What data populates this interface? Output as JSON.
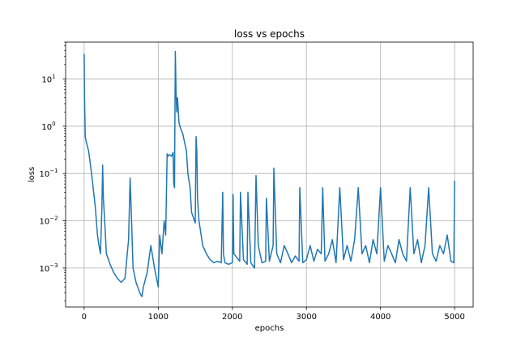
{
  "chart_data": {
    "type": "line",
    "title": "loss vs epochs",
    "xlabel": "epochs",
    "ylabel": "loss",
    "xlim": [
      -250,
      5250
    ],
    "ylim": [
      0.00015,
      60
    ],
    "yscale": "log",
    "grid": true,
    "line_color": "#1f77b4",
    "x_ticks": [
      {
        "value": 0,
        "label": "0"
      },
      {
        "value": 1000,
        "label": "1000"
      },
      {
        "value": 2000,
        "label": "2000"
      },
      {
        "value": 3000,
        "label": "3000"
      },
      {
        "value": 4000,
        "label": "4000"
      },
      {
        "value": 5000,
        "label": "5000"
      }
    ],
    "y_ticks": [
      {
        "value": 0.001,
        "base": "10",
        "exp": "−3"
      },
      {
        "value": 0.01,
        "base": "10",
        "exp": "−2"
      },
      {
        "value": 0.1,
        "base": "10",
        "exp": "−1"
      },
      {
        "value": 1,
        "base": "10",
        "exp": "0"
      },
      {
        "value": 10,
        "base": "10",
        "exp": "1"
      }
    ],
    "series": [
      {
        "x": [
          0,
          5,
          15,
          30,
          60,
          100,
          150,
          180,
          200,
          220,
          240,
          250,
          260,
          280,
          300,
          350,
          400,
          450,
          500,
          550,
          600,
          620,
          640,
          660,
          700,
          750,
          780,
          800,
          850,
          900,
          950,
          1000,
          1020,
          1050,
          1080,
          1100,
          1120,
          1130,
          1150,
          1180,
          1200,
          1210,
          1220,
          1230,
          1240,
          1250,
          1260,
          1280,
          1300,
          1330,
          1350,
          1380,
          1400,
          1430,
          1450,
          1500,
          1510,
          1520,
          1530,
          1550,
          1600,
          1650,
          1700,
          1750,
          1800,
          1850,
          1870,
          1880,
          1900,
          1950,
          2000,
          2010,
          2020,
          2100,
          2110,
          2150,
          2200,
          2210,
          2250,
          2300,
          2320,
          2350,
          2400,
          2450,
          2460,
          2500,
          2550,
          2560,
          2600,
          2650,
          2700,
          2750,
          2800,
          2850,
          2900,
          2910,
          2950,
          3000,
          3050,
          3100,
          3150,
          3200,
          3220,
          3250,
          3300,
          3350,
          3400,
          3450,
          3500,
          3550,
          3600,
          3650,
          3700,
          3750,
          3800,
          3850,
          3900,
          3950,
          4000,
          4050,
          4100,
          4150,
          4200,
          4250,
          4300,
          4350,
          4400,
          4450,
          4500,
          4550,
          4600,
          4650,
          4700,
          4750,
          4800,
          4850,
          4900,
          4950,
          4990,
          5000
        ],
        "y": [
          34,
          5,
          0.6,
          0.45,
          0.3,
          0.1,
          0.02,
          0.005,
          0.003,
          0.002,
          0.02,
          0.15,
          0.03,
          0.008,
          0.002,
          0.0012,
          0.0008,
          0.0006,
          0.0005,
          0.0006,
          0.004,
          0.08,
          0.01,
          0.001,
          0.0005,
          0.0003,
          0.00025,
          0.0004,
          0.0008,
          0.003,
          0.001,
          0.0004,
          0.005,
          0.002,
          0.01,
          0.005,
          0.26,
          0.23,
          0.25,
          0.23,
          0.28,
          0.06,
          0.05,
          38,
          5,
          2,
          4,
          1.2,
          0.9,
          0.7,
          0.5,
          0.3,
          0.1,
          0.05,
          0.015,
          0.009,
          0.6,
          0.3,
          0.03,
          0.01,
          0.003,
          0.002,
          0.0015,
          0.0013,
          0.0014,
          0.0013,
          0.04,
          0.002,
          0.0013,
          0.0012,
          0.0013,
          0.036,
          0.002,
          0.0014,
          0.04,
          0.0015,
          0.0012,
          0.04,
          0.0013,
          0.001,
          0.09,
          0.003,
          0.0013,
          0.0014,
          0.03,
          0.0014,
          0.003,
          0.13,
          0.002,
          0.0013,
          0.003,
          0.002,
          0.0013,
          0.0018,
          0.0014,
          0.05,
          0.0013,
          0.0015,
          0.003,
          0.0014,
          0.0025,
          0.002,
          0.05,
          0.0014,
          0.002,
          0.004,
          0.0013,
          0.05,
          0.0015,
          0.003,
          0.0014,
          0.004,
          0.05,
          0.002,
          0.003,
          0.0013,
          0.004,
          0.002,
          0.05,
          0.0014,
          0.003,
          0.002,
          0.0013,
          0.004,
          0.002,
          0.0014,
          0.05,
          0.002,
          0.004,
          0.0013,
          0.003,
          0.05,
          0.002,
          0.0014,
          0.003,
          0.002,
          0.005,
          0.0014,
          0.0013,
          0.07
        ]
      }
    ]
  }
}
